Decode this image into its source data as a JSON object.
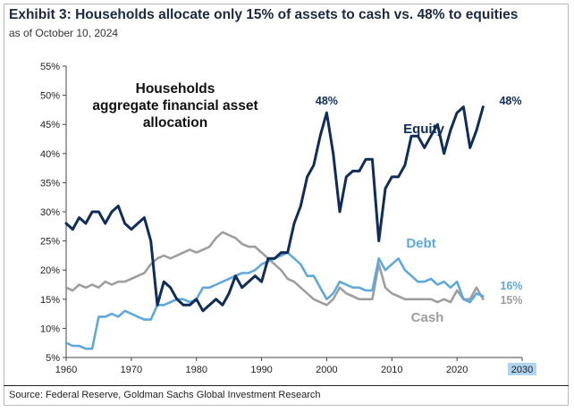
{
  "header": {
    "title": "Exhibit 3: Households allocate only 15% of assets to cash vs. 48% to equities",
    "subtitle": "as of October 10, 2024"
  },
  "footer": {
    "source": "Source: Federal Reserve, Goldman Sachs Global Investment Research"
  },
  "colors": {
    "equity": "#0f2d57",
    "debt": "#5fa8dc",
    "cash": "#9e9e9e",
    "highlight": "#aed4f0"
  },
  "chart_data": {
    "type": "line",
    "title": "Households aggregate financial asset allocation",
    "xlim": [
      1960,
      2030
    ],
    "ylim": [
      5,
      55
    ],
    "x_ticks": [
      1960,
      1970,
      1980,
      1990,
      2000,
      2010,
      2020,
      2030
    ],
    "x_tick_labels": [
      "1960",
      "1970",
      "1980",
      "1990",
      "2000",
      "2010",
      "2020",
      "2030"
    ],
    "y_ticks": [
      5,
      10,
      15,
      20,
      25,
      30,
      35,
      40,
      45,
      50,
      55
    ],
    "y_tick_labels": [
      "5%",
      "10%",
      "15%",
      "20%",
      "25%",
      "30%",
      "35%",
      "40%",
      "45%",
      "50%",
      "55%"
    ],
    "grid": false,
    "annotations": {
      "equity_peak": "48%",
      "equity_last": "48%",
      "debt_last": "16%",
      "cash_last": "15%"
    },
    "series": [
      {
        "name": "Equity",
        "x": [
          1960,
          1961,
          1962,
          1963,
          1964,
          1965,
          1966,
          1967,
          1968,
          1969,
          1970,
          1971,
          1972,
          1973,
          1974,
          1975,
          1976,
          1977,
          1978,
          1979,
          1980,
          1981,
          1982,
          1983,
          1984,
          1985,
          1986,
          1987,
          1988,
          1989,
          1990,
          1991,
          1992,
          1993,
          1994,
          1995,
          1996,
          1997,
          1998,
          1999,
          2000,
          2001,
          2002,
          2003,
          2004,
          2005,
          2006,
          2007,
          2008,
          2009,
          2010,
          2011,
          2012,
          2013,
          2014,
          2015,
          2016,
          2017,
          2018,
          2019,
          2020,
          2021,
          2022,
          2023,
          2024
        ],
        "values": [
          28,
          27,
          29,
          28,
          30,
          30,
          28,
          30,
          31,
          28,
          27,
          28,
          29,
          25,
          14,
          18,
          17,
          15,
          14,
          14,
          15,
          13,
          14,
          15,
          14,
          16,
          19,
          17,
          18,
          19,
          18,
          22,
          22,
          23,
          23,
          28,
          31,
          36,
          38,
          43,
          47,
          40,
          30,
          36,
          37,
          37,
          39,
          39,
          25,
          34,
          36,
          36,
          38,
          43,
          43,
          41,
          43,
          45,
          40,
          44,
          47,
          48,
          41,
          44,
          48
        ]
      },
      {
        "name": "Debt",
        "x": [
          1960,
          1961,
          1962,
          1963,
          1964,
          1965,
          1966,
          1967,
          1968,
          1969,
          1970,
          1971,
          1972,
          1973,
          1974,
          1975,
          1976,
          1977,
          1978,
          1979,
          1980,
          1981,
          1982,
          1983,
          1984,
          1985,
          1986,
          1987,
          1988,
          1989,
          1990,
          1991,
          1992,
          1993,
          1994,
          1995,
          1996,
          1997,
          1998,
          1999,
          2000,
          2001,
          2002,
          2003,
          2004,
          2005,
          2006,
          2007,
          2008,
          2009,
          2010,
          2011,
          2012,
          2013,
          2014,
          2015,
          2016,
          2017,
          2018,
          2019,
          2020,
          2021,
          2022,
          2023,
          2024
        ],
        "values": [
          7.5,
          7.0,
          7.0,
          6.5,
          6.5,
          12.0,
          12.0,
          12.5,
          12.0,
          13.0,
          12.5,
          12.0,
          11.5,
          11.5,
          14.0,
          14.0,
          14.5,
          15.0,
          15.0,
          14.5,
          15.0,
          17.0,
          17.0,
          17.5,
          18.0,
          18.5,
          19.0,
          19.5,
          19.5,
          20.0,
          21.0,
          21.5,
          22.0,
          22.5,
          23.0,
          22.0,
          21.0,
          19.0,
          19.0,
          17.0,
          15.0,
          16.0,
          18.0,
          17.5,
          17.0,
          17.0,
          16.5,
          16.5,
          22.0,
          20.0,
          21.0,
          22.0,
          20.0,
          19.0,
          18.0,
          18.0,
          18.5,
          17.5,
          18.0,
          17.0,
          18.0,
          15.0,
          14.5,
          16.0,
          15.5
        ]
      },
      {
        "name": "Cash",
        "x": [
          1960,
          1961,
          1962,
          1963,
          1964,
          1965,
          1966,
          1967,
          1968,
          1969,
          1970,
          1971,
          1972,
          1973,
          1974,
          1975,
          1976,
          1977,
          1978,
          1979,
          1980,
          1981,
          1982,
          1983,
          1984,
          1985,
          1986,
          1987,
          1988,
          1989,
          1990,
          1991,
          1992,
          1993,
          1994,
          1995,
          1996,
          1997,
          1998,
          1999,
          2000,
          2001,
          2002,
          2003,
          2004,
          2005,
          2006,
          2007,
          2008,
          2009,
          2010,
          2011,
          2012,
          2013,
          2014,
          2015,
          2016,
          2017,
          2018,
          2019,
          2020,
          2021,
          2022,
          2023,
          2024
        ],
        "values": [
          17.0,
          16.5,
          17.5,
          17.0,
          17.5,
          17.0,
          18.0,
          17.5,
          18.0,
          18.0,
          18.5,
          19.0,
          19.5,
          21.0,
          22.0,
          22.5,
          22.0,
          22.5,
          23.0,
          23.5,
          23.0,
          23.5,
          24.0,
          25.5,
          26.5,
          26.0,
          25.5,
          24.5,
          24.0,
          24.0,
          23.0,
          22.0,
          21.0,
          20.0,
          18.5,
          18.0,
          17.0,
          16.0,
          15.0,
          14.5,
          14.0,
          15.0,
          17.0,
          16.0,
          15.5,
          15.0,
          15.0,
          15.0,
          21.0,
          17.0,
          16.0,
          15.5,
          15.0,
          15.0,
          15.0,
          15.0,
          15.0,
          14.5,
          15.0,
          14.5,
          16.5,
          15.0,
          15.0,
          17.0,
          15.0
        ]
      }
    ]
  }
}
